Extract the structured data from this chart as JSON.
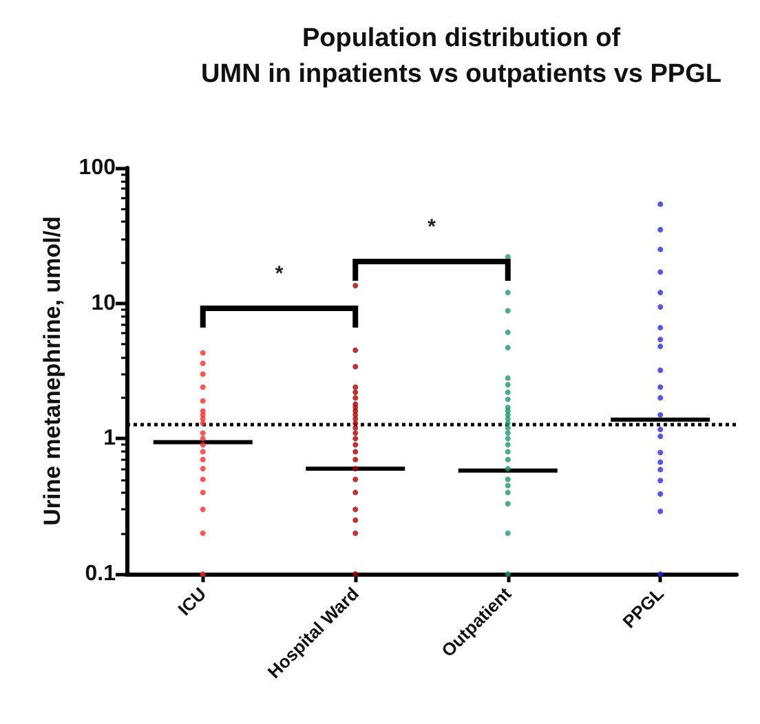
{
  "chart_data": {
    "type": "scatter",
    "title": "Population distribution of\nUMN in inpatients vs outpatients vs PPGL",
    "ylabel": "Urine metanephrine, umol/d",
    "categories": [
      "ICU",
      "Hospital Ward",
      "Outpatient",
      "PPGL"
    ],
    "log": "y",
    "ylim": [
      0.1,
      100
    ],
    "yticks": [
      0.1,
      1,
      10,
      100
    ],
    "grid": false,
    "marker": "circle",
    "series": [
      {
        "color": "#ff2a2a",
        "x": [
          "ICU",
          "ICU",
          "ICU",
          "ICU",
          "ICU",
          "ICU",
          "ICU",
          "ICU",
          "ICU",
          "ICU",
          "ICU",
          "ICU",
          "ICU",
          "ICU",
          "ICU",
          "ICU",
          "ICU",
          "ICU",
          "ICU",
          "ICU"
        ],
        "values": [
          4.3,
          3.6,
          3.0,
          2.4,
          1.9,
          1.6,
          1.5,
          1.4,
          1.3,
          1.1,
          1.0,
          0.9,
          0.8,
          0.7,
          0.6,
          0.5,
          0.4,
          0.3,
          0.2,
          0.1
        ]
      },
      {
        "color": "#b00000",
        "x": [
          "Hospital Ward",
          "Hospital Ward",
          "Hospital Ward",
          "Hospital Ward",
          "Hospital Ward",
          "Hospital Ward",
          "Hospital Ward",
          "Hospital Ward",
          "Hospital Ward",
          "Hospital Ward",
          "Hospital Ward",
          "Hospital Ward",
          "Hospital Ward",
          "Hospital Ward",
          "Hospital Ward",
          "Hospital Ward",
          "Hospital Ward",
          "Hospital Ward",
          "Hospital Ward",
          "Hospital Ward",
          "Hospital Ward",
          "Hospital Ward",
          "Hospital Ward",
          "Hospital Ward",
          "Hospital Ward"
        ],
        "values": [
          13.5,
          4.5,
          3.4,
          2.4,
          2.2,
          2.0,
          1.8,
          1.7,
          1.6,
          1.5,
          1.4,
          1.3,
          1.2,
          1.1,
          1.0,
          0.9,
          0.8,
          0.7,
          0.6,
          0.5,
          0.4,
          0.3,
          0.25,
          0.2,
          0.1
        ]
      },
      {
        "color": "#1a9a6a",
        "x": [
          "Outpatient",
          "Outpatient",
          "Outpatient",
          "Outpatient",
          "Outpatient",
          "Outpatient",
          "Outpatient",
          "Outpatient",
          "Outpatient",
          "Outpatient",
          "Outpatient",
          "Outpatient",
          "Outpatient",
          "Outpatient",
          "Outpatient",
          "Outpatient",
          "Outpatient",
          "Outpatient",
          "Outpatient",
          "Outpatient",
          "Outpatient",
          "Outpatient",
          "Outpatient",
          "Outpatient",
          "Outpatient",
          "Outpatient",
          "Outpatient"
        ],
        "values": [
          22,
          12,
          8.8,
          6.1,
          4.7,
          2.8,
          2.5,
          2.2,
          1.95,
          1.7,
          1.6,
          1.5,
          1.4,
          1.3,
          1.2,
          1.1,
          1.0,
          0.9,
          0.8,
          0.7,
          0.6,
          0.5,
          0.45,
          0.4,
          0.33,
          0.2,
          0.1
        ]
      },
      {
        "color": "#2a2ae0",
        "x": [
          "PPGL",
          "PPGL",
          "PPGL",
          "PPGL",
          "PPGL",
          "PPGL",
          "PPGL",
          "PPGL",
          "PPGL",
          "PPGL",
          "PPGL",
          "PPGL",
          "PPGL",
          "PPGL",
          "PPGL",
          "PPGL",
          "PPGL",
          "PPGL",
          "PPGL",
          "PPGL",
          "PPGL",
          "PPGL"
        ],
        "values": [
          54,
          35,
          25,
          17,
          12,
          9.4,
          6.6,
          5.4,
          4.8,
          3.2,
          2.4,
          2.0,
          1.5,
          1.17,
          1.04,
          0.79,
          0.67,
          0.59,
          0.49,
          0.39,
          0.29,
          0.1
        ]
      },
      {
        "type": "box",
        "color": "#000000",
        "boxes": [
          {
            "low": 0.94,
            "q1": 0.94,
            "median": 0.94,
            "q3": 0.94,
            "high": 0.94
          },
          {
            "low": 0.6,
            "q1": 0.6,
            "median": 0.6,
            "q3": 0.6,
            "high": 0.6
          },
          {
            "low": 0.58,
            "q1": 0.58,
            "median": 0.58,
            "q3": 0.58,
            "high": 0.58
          },
          {
            "low": 1.38,
            "q1": 1.38,
            "median": 1.38,
            "q3": 1.38,
            "high": 1.38
          }
        ]
      }
    ],
    "ref_lines": [
      {
        "axis": "y",
        "value": 1.27,
        "color": "#000000",
        "line_style": "dotted"
      }
    ],
    "annotations": [
      "*",
      "*"
    ]
  }
}
